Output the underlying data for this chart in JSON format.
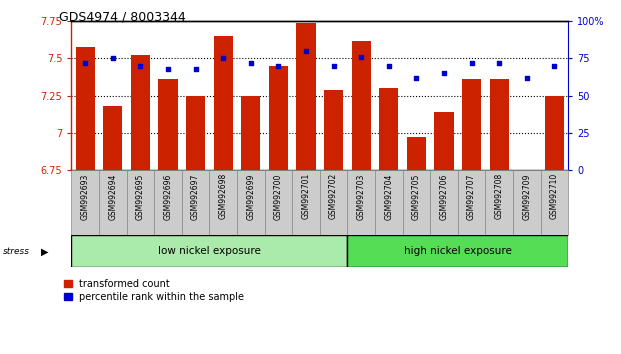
{
  "title": "GDS4974 / 8003344",
  "categories": [
    "GSM992693",
    "GSM992694",
    "GSM992695",
    "GSM992696",
    "GSM992697",
    "GSM992698",
    "GSM992699",
    "GSM992700",
    "GSM992701",
    "GSM992702",
    "GSM992703",
    "GSM992704",
    "GSM992705",
    "GSM992706",
    "GSM992707",
    "GSM992708",
    "GSM992709",
    "GSM992710"
  ],
  "bar_values": [
    7.58,
    7.18,
    7.52,
    7.36,
    7.25,
    7.65,
    7.25,
    7.45,
    7.74,
    7.29,
    7.62,
    7.3,
    6.97,
    7.14,
    7.36,
    7.36,
    6.69,
    7.25
  ],
  "dot_values": [
    72,
    75,
    70,
    68,
    68,
    75,
    72,
    70,
    80,
    70,
    76,
    70,
    62,
    65,
    72,
    72,
    62,
    70
  ],
  "bar_color": "#CC2200",
  "dot_color": "#0000CC",
  "ylim_left": [
    6.75,
    7.75
  ],
  "ylim_right": [
    0,
    100
  ],
  "yticks_left": [
    6.75,
    7.0,
    7.25,
    7.5,
    7.75
  ],
  "yticks_left_labels": [
    "6.75",
    "7",
    "7.25",
    "7.5",
    "7.75"
  ],
  "yticks_right": [
    0,
    25,
    50,
    75,
    100
  ],
  "yticks_right_labels": [
    "0",
    "25",
    "50",
    "75",
    "100%"
  ],
  "bar_bottom": 6.75,
  "group1_label": "low nickel exposure",
  "group2_label": "high nickel exposure",
  "group1_count": 10,
  "group2_count": 8,
  "group1_color": "#AAEAAA",
  "group2_color": "#55DD55",
  "stress_label": "stress",
  "legend1_label": "transformed count",
  "legend2_label": "percentile rank within the sample",
  "grid_yticks": [
    7.0,
    7.25,
    7.5
  ],
  "background_color": "#ffffff",
  "xtick_bg": "#CCCCCC"
}
